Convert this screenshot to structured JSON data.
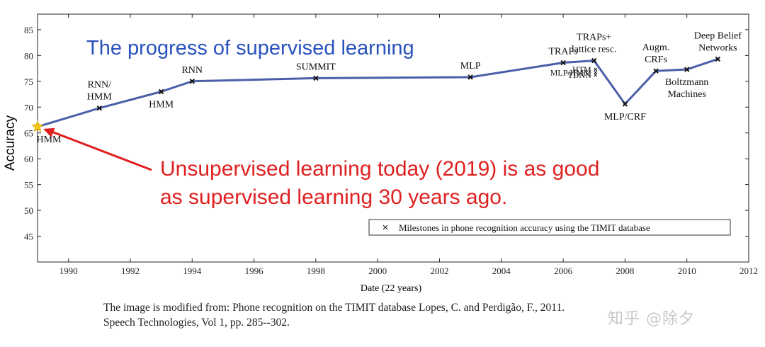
{
  "chart_data": {
    "type": "line",
    "title": "The progress of supervised learning",
    "xlabel": "Date (22 years)",
    "ylabel": "Accuracy",
    "xlim": [
      1989,
      2012
    ],
    "ylim": [
      40,
      88
    ],
    "xticks": [
      1990,
      1992,
      1994,
      1996,
      1998,
      2000,
      2002,
      2004,
      2006,
      2008,
      2010,
      2012
    ],
    "yticks": [
      45,
      50,
      55,
      60,
      65,
      70,
      75,
      80,
      85
    ],
    "legend": {
      "position": "bottom-right",
      "label": "Milestones in phone recognition accuracy using the TIMIT database"
    },
    "series": [
      {
        "points": [
          {
            "x": 1989,
            "y": 66.2
          },
          {
            "x": 1991,
            "y": 69.8
          },
          {
            "x": 1993,
            "y": 73.0
          },
          {
            "x": 1994,
            "y": 75.0
          },
          {
            "x": 1998,
            "y": 75.6
          },
          {
            "x": 2003,
            "y": 75.8
          },
          {
            "x": 2006,
            "y": 78.6
          },
          {
            "x": 2007,
            "y": 79.0
          },
          {
            "x": 2008,
            "y": 70.6
          },
          {
            "x": 2009,
            "y": 77.0
          },
          {
            "x": 2010,
            "y": 77.3
          },
          {
            "x": 2011,
            "y": 79.3
          }
        ]
      }
    ],
    "extra_markers": [
      {
        "x": 2007,
        "y": 77.3
      },
      {
        "x": 2007,
        "y": 76.7
      },
      {
        "x": 2007,
        "y": 76.2
      }
    ],
    "point_labels": [
      {
        "lines": [
          "HMM"
        ],
        "x": 1989,
        "y": 66.2,
        "pos": "below"
      },
      {
        "lines": [
          "RNN/",
          "HMM"
        ],
        "x": 1991,
        "y": 69.8,
        "pos": "above"
      },
      {
        "lines": [
          "HMM"
        ],
        "x": 1993,
        "y": 73.0,
        "pos": "below"
      },
      {
        "lines": [
          "RNN"
        ],
        "x": 1994,
        "y": 75.0,
        "pos": "above"
      },
      {
        "lines": [
          "SUMMIT"
        ],
        "x": 1998,
        "y": 75.6,
        "pos": "above"
      },
      {
        "lines": [
          "MLP"
        ],
        "x": 2003,
        "y": 75.8,
        "pos": "above"
      },
      {
        "lines": [
          "TRAPs"
        ],
        "x": 2006,
        "y": 78.6,
        "pos": "above"
      },
      {
        "lines": [
          "TRAPs+",
          "lattice resc."
        ],
        "x": 2007,
        "y": 79.0,
        "pos": "above"
      },
      {
        "lines": [
          "MLP/CRF"
        ],
        "x": 2008,
        "y": 70.6,
        "pos": "below"
      },
      {
        "lines": [
          "Augm.",
          "CRFs"
        ],
        "x": 2009,
        "y": 77.0,
        "pos": "above"
      },
      {
        "lines": [
          "Boltzmann",
          "Machines"
        ],
        "x": 2010,
        "y": 77.3,
        "pos": "below"
      },
      {
        "lines": [
          "Deep Belief",
          "Networks"
        ],
        "x": 2011,
        "y": 79.3,
        "pos": "above"
      },
      {
        "lines": [
          "HTM"
        ],
        "x": 2007,
        "y": 77.3,
        "pos": "left"
      },
      {
        "lines": [
          "MLP/HMM"
        ],
        "x": 2007,
        "y": 76.7,
        "pos": "left"
      },
      {
        "lines": [
          "TDNN"
        ],
        "x": 2007,
        "y": 76.2,
        "pos": "left"
      }
    ],
    "annotation": {
      "lines": [
        "Unsupervised learning today (2019) is as good",
        "as supervised learning 30 years ago."
      ],
      "target": {
        "x": 1989,
        "y": 66.2
      },
      "star_at": {
        "x": 1989,
        "y": 66.2
      }
    }
  },
  "caption": {
    "line1": "The image is modified from: Phone recognition on the TIMIT database Lopes, C. and Perdigão, F., 2011.",
    "line2": "Speech Technologies, Vol 1, pp. 285--302."
  },
  "watermark": "知乎 @除夕",
  "colors": {
    "line": "#4a5fa8",
    "title": "#2a52be",
    "annotation": "#e02020",
    "axis": "#222222",
    "star": "#f5c518"
  }
}
